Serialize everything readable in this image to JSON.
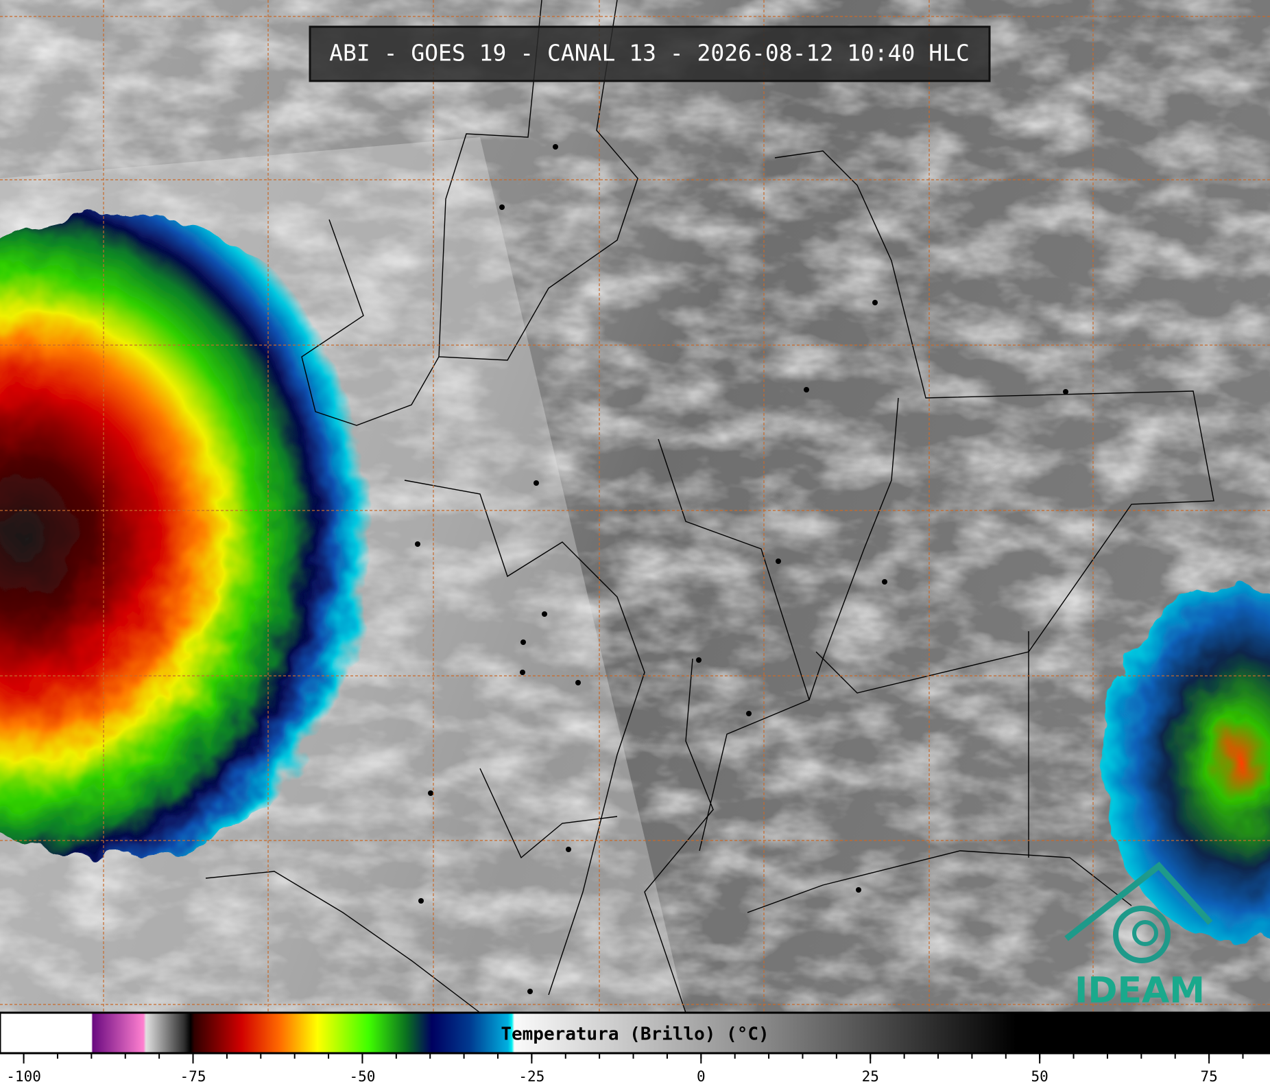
{
  "header": {
    "title": "ABI - GOES 19 - CANAL 13 - 2026-08-12 10:40 HLC"
  },
  "logo": {
    "text": "IDEAM"
  },
  "colorbar": {
    "label": "Temperatura (Brillo) (°C)",
    "range": [
      -103.5,
      84
    ],
    "ticks": [
      -100,
      -75,
      -50,
      -25,
      0,
      25,
      50,
      75
    ]
  }
}
